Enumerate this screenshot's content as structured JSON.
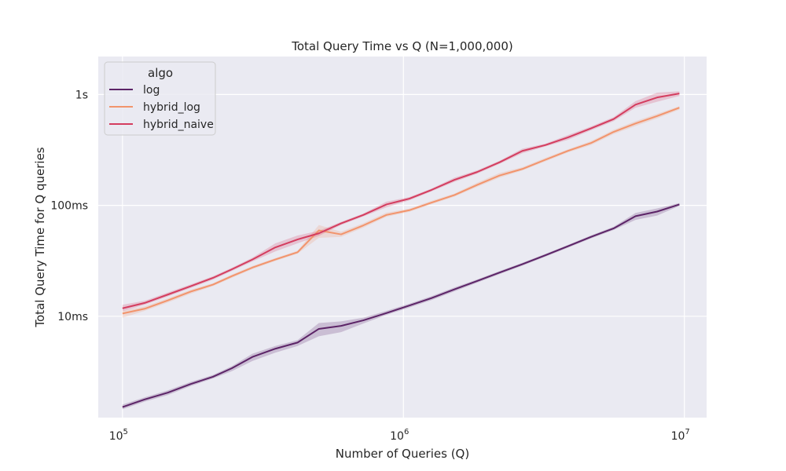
{
  "chart_data": {
    "type": "line",
    "title": "Total Query Time vs Q (N=1,000,000)",
    "xlabel": "Number of Queries (Q)",
    "ylabel": "Total Query Time for Q queries",
    "x_scale": "log",
    "y_scale": "log",
    "xlim": [
      82000,
      12000000
    ],
    "ylim": [
      1.05,
      1.65
    ],
    "x_ticks": [
      {
        "value": 100000,
        "base": "10",
        "exp": "5"
      },
      {
        "value": 1000000,
        "base": "10",
        "exp": "6"
      },
      {
        "value": 10000000,
        "base": "10",
        "exp": "7"
      }
    ],
    "y_ticks": [
      {
        "value": 0.01,
        "label": "10ms"
      },
      {
        "value": 0.1,
        "label": "100ms"
      },
      {
        "value": 1,
        "label": "1s"
      }
    ],
    "ylim_seconds": [
      0.00122,
      2.2
    ],
    "grid": true,
    "legend": {
      "title": "algo",
      "placement": "top-left"
    },
    "colors": {
      "log": "#5c2467",
      "hybrid_log": "#f2946c",
      "hybrid_naive": "#d43d5f",
      "background": "#eaeaf2"
    },
    "series": [
      {
        "name": "log",
        "color": "#5c2467",
        "x": [
          100000,
          120000,
          145000,
          175000,
          210000,
          245000,
          290000,
          350000,
          420000,
          500000,
          600000,
          720000,
          870000,
          1050000,
          1260000,
          1520000,
          1830000,
          2200000,
          2650000,
          3200000,
          3850000,
          4650000,
          5600000,
          6700000,
          8000000,
          9600000
        ],
        "y": [
          0.00152,
          0.00178,
          0.00205,
          0.00245,
          0.00285,
          0.0034,
          0.0043,
          0.0051,
          0.0058,
          0.0077,
          0.0082,
          0.0092,
          0.0107,
          0.0125,
          0.0146,
          0.0175,
          0.0208,
          0.0248,
          0.0295,
          0.0355,
          0.0428,
          0.052,
          0.062,
          0.08,
          0.088,
          0.102
        ],
        "lower": [
          0.00145,
          0.0017,
          0.00195,
          0.00235,
          0.00275,
          0.0032,
          0.00395,
          0.0047,
          0.0054,
          0.0066,
          0.0072,
          0.0086,
          0.0103,
          0.012,
          0.014,
          0.0168,
          0.0201,
          0.024,
          0.0286,
          0.0345,
          0.0415,
          0.0503,
          0.06,
          0.074,
          0.081,
          0.099
        ],
        "upper": [
          0.0016,
          0.00186,
          0.00215,
          0.00256,
          0.00296,
          0.00355,
          0.0046,
          0.0054,
          0.0061,
          0.0087,
          0.009,
          0.0097,
          0.0112,
          0.013,
          0.0152,
          0.0182,
          0.0215,
          0.0256,
          0.0304,
          0.0366,
          0.044,
          0.0536,
          0.0642,
          0.0855,
          0.094,
          0.105
        ]
      },
      {
        "name": "hybrid_log",
        "color": "#f2946c",
        "x": [
          100000,
          120000,
          145000,
          175000,
          210000,
          245000,
          290000,
          350000,
          420000,
          500000,
          600000,
          720000,
          870000,
          1050000,
          1260000,
          1520000,
          1830000,
          2200000,
          2650000,
          3200000,
          3850000,
          4650000,
          5600000,
          6700000,
          8000000,
          9600000
        ],
        "y": [
          0.0106,
          0.0117,
          0.0139,
          0.0167,
          0.0193,
          0.023,
          0.0275,
          0.0325,
          0.0378,
          0.0595,
          0.0548,
          0.066,
          0.082,
          0.0905,
          0.106,
          0.124,
          0.153,
          0.186,
          0.213,
          0.258,
          0.31,
          0.365,
          0.46,
          0.548,
          0.64,
          0.76
        ],
        "lower": [
          0.0097,
          0.0112,
          0.0133,
          0.016,
          0.0187,
          0.0222,
          0.0266,
          0.0315,
          0.0367,
          0.051,
          0.052,
          0.063,
          0.079,
          0.0875,
          0.1025,
          0.12,
          0.147,
          0.178,
          0.206,
          0.249,
          0.3,
          0.35,
          0.44,
          0.52,
          0.61,
          0.73
        ],
        "upper": [
          0.0112,
          0.0123,
          0.0145,
          0.0174,
          0.0199,
          0.0238,
          0.0284,
          0.0335,
          0.039,
          0.0665,
          0.0578,
          0.069,
          0.086,
          0.0935,
          0.11,
          0.128,
          0.16,
          0.196,
          0.221,
          0.268,
          0.32,
          0.38,
          0.48,
          0.575,
          0.67,
          0.785
        ]
      },
      {
        "name": "hybrid_naive",
        "color": "#d43d5f",
        "x": [
          100000,
          120000,
          145000,
          175000,
          210000,
          245000,
          290000,
          350000,
          420000,
          500000,
          600000,
          720000,
          870000,
          1050000,
          1260000,
          1520000,
          1830000,
          2200000,
          2650000,
          3200000,
          3850000,
          4650000,
          5600000,
          6700000,
          8000000,
          9600000
        ],
        "y": [
          0.0118,
          0.0132,
          0.0157,
          0.0187,
          0.0222,
          0.0265,
          0.0325,
          0.0418,
          0.0493,
          0.056,
          0.0688,
          0.082,
          0.102,
          0.115,
          0.138,
          0.17,
          0.2,
          0.245,
          0.31,
          0.35,
          0.41,
          0.495,
          0.6,
          0.81,
          0.94,
          1.02
        ],
        "lower": [
          0.0111,
          0.0127,
          0.0151,
          0.018,
          0.0214,
          0.0256,
          0.0312,
          0.0385,
          0.0455,
          0.053,
          0.0665,
          0.0795,
          0.096,
          0.111,
          0.134,
          0.163,
          0.193,
          0.237,
          0.295,
          0.34,
          0.39,
          0.475,
          0.575,
          0.76,
          0.86,
          0.97
        ],
        "upper": [
          0.0127,
          0.0138,
          0.0164,
          0.0194,
          0.023,
          0.0274,
          0.0338,
          0.0455,
          0.0535,
          0.059,
          0.071,
          0.0845,
          0.108,
          0.119,
          0.142,
          0.178,
          0.207,
          0.253,
          0.325,
          0.36,
          0.43,
          0.515,
          0.625,
          0.87,
          1.04,
          1.07
        ]
      }
    ]
  }
}
